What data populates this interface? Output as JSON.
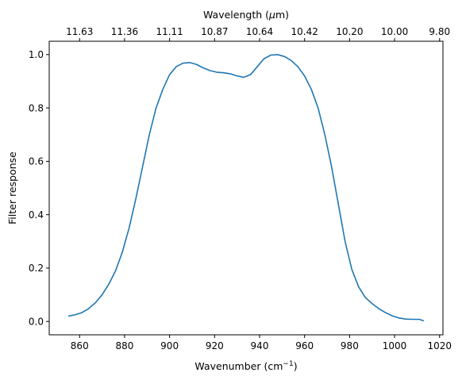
{
  "chart_data": {
    "type": "line",
    "title": "",
    "xlabel": "Wavenumber (cm",
    "xlabel_sup": "−1",
    "xlabel_close": ")",
    "ylabel": "Filter response",
    "top_xlabel": "Wavelength (",
    "top_xlabel_mu": "μ",
    "top_xlabel_close": "m)",
    "xlim": [
      846.5,
      1021.5
    ],
    "ylim": [
      -0.05,
      1.05
    ],
    "x_ticks": [
      860,
      880,
      900,
      920,
      940,
      960,
      980,
      1000,
      1020
    ],
    "y_ticks": [
      "0.0",
      "0.2",
      "0.4",
      "0.6",
      "0.8",
      "1.0"
    ],
    "top_ticks": [
      {
        "label": "11.63",
        "at": 860
      },
      {
        "label": "11.36",
        "at": 880
      },
      {
        "label": "11.11",
        "at": 900
      },
      {
        "label": "10.87",
        "at": 920
      },
      {
        "label": "10.64",
        "at": 940
      },
      {
        "label": "10.42",
        "at": 960
      },
      {
        "label": "10.20",
        "at": 980
      },
      {
        "label": "10.00",
        "at": 1000
      },
      {
        "label": "9.80",
        "at": 1020
      }
    ],
    "grid": false,
    "line_color": "#1f77b4",
    "series": [
      {
        "x": [
          855,
          858,
          861,
          864,
          867,
          870,
          873,
          876,
          879,
          882,
          885,
          888,
          891,
          894,
          897,
          900,
          903,
          906,
          909,
          912,
          915,
          918,
          921,
          924,
          927,
          930,
          933,
          936,
          939,
          942,
          945,
          948,
          951,
          954,
          957,
          960,
          963,
          966,
          969,
          972,
          975,
          978,
          981,
          984,
          987,
          990,
          993,
          996,
          999,
          1002,
          1005,
          1008,
          1011,
          1013
        ],
        "y": [
          0.02,
          0.025,
          0.033,
          0.048,
          0.07,
          0.1,
          0.14,
          0.19,
          0.26,
          0.35,
          0.46,
          0.58,
          0.7,
          0.8,
          0.87,
          0.925,
          0.955,
          0.968,
          0.97,
          0.963,
          0.95,
          0.94,
          0.934,
          0.932,
          0.928,
          0.92,
          0.915,
          0.925,
          0.955,
          0.985,
          0.998,
          1.0,
          0.993,
          0.978,
          0.955,
          0.92,
          0.87,
          0.8,
          0.7,
          0.58,
          0.44,
          0.3,
          0.195,
          0.13,
          0.09,
          0.067,
          0.048,
          0.033,
          0.021,
          0.013,
          0.009,
          0.008,
          0.008,
          0.002
        ]
      }
    ]
  }
}
